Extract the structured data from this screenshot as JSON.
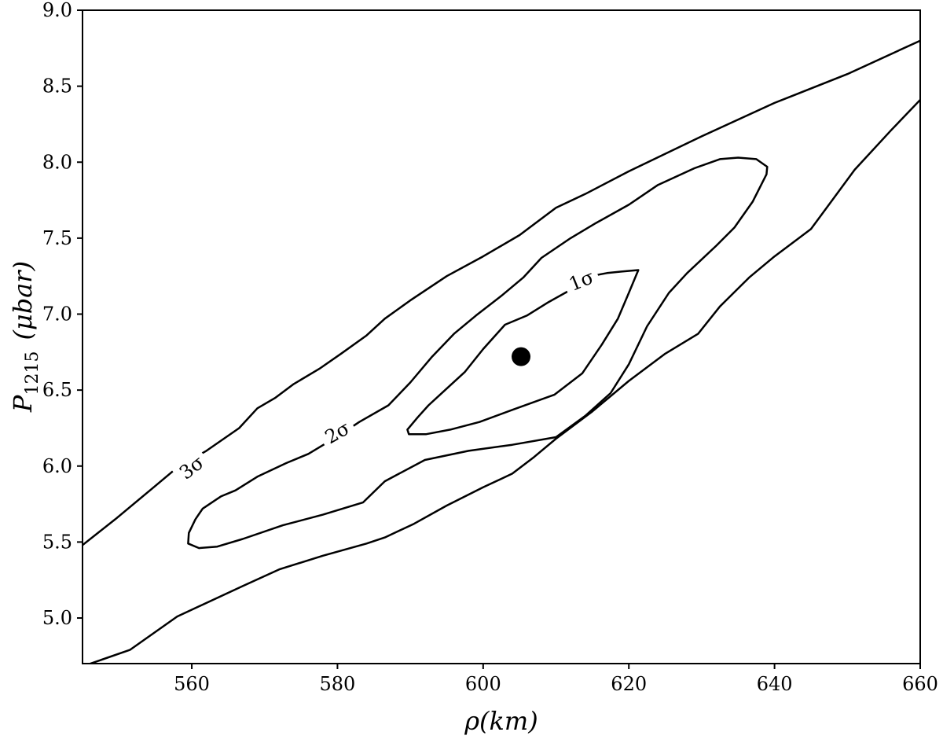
{
  "chart_data": {
    "type": "contour",
    "xlabel": "ρ(km)",
    "ylabel_main": "P",
    "ylabel_sub": "1215",
    "ylabel_unit": "(μbar)",
    "xlim": [
      545,
      660
    ],
    "ylim": [
      4.7,
      9.0
    ],
    "xticks": [
      560,
      580,
      600,
      620,
      640,
      660
    ],
    "xtick_labels": [
      "560",
      "580",
      "600",
      "620",
      "640",
      "660"
    ],
    "yticks": [
      5.0,
      5.5,
      6.0,
      6.5,
      7.0,
      7.5,
      8.0,
      8.5,
      9.0
    ],
    "ytick_labels": [
      "5.0",
      "5.5",
      "6.0",
      "6.5",
      "7.0",
      "7.5",
      "8.0",
      "8.5",
      "9.0"
    ],
    "grid": false,
    "best_fit": {
      "x": 605.2,
      "y": 6.72
    },
    "contours": [
      {
        "level": "1σ",
        "closed": true,
        "label": {
          "text": "1σ",
          "x": 613.5,
          "y": 7.22,
          "angle": -22
        },
        "points": [
          [
            621.3,
            7.29
          ],
          [
            620.0,
            7.14
          ],
          [
            618.5,
            6.97
          ],
          [
            616.3,
            6.8
          ],
          [
            613.6,
            6.61
          ],
          [
            609.8,
            6.47
          ],
          [
            604.0,
            6.37
          ],
          [
            599.5,
            6.29
          ],
          [
            595.5,
            6.24
          ],
          [
            592.2,
            6.21
          ],
          [
            589.8,
            6.21
          ],
          [
            589.6,
            6.24
          ],
          [
            591.0,
            6.32
          ],
          [
            592.5,
            6.4
          ],
          [
            595.0,
            6.51
          ],
          [
            597.5,
            6.62
          ],
          [
            600.0,
            6.77
          ],
          [
            601.5,
            6.85
          ],
          [
            603.0,
            6.93
          ],
          [
            606.0,
            6.99
          ],
          [
            609.0,
            7.08
          ],
          [
            612.0,
            7.16
          ],
          [
            614.8,
            7.25
          ],
          [
            617.0,
            7.27
          ],
          [
            619.0,
            7.28
          ],
          [
            621.3,
            7.29
          ]
        ]
      },
      {
        "level": "2σ",
        "closed": true,
        "label": {
          "text": "2σ",
          "x": 580.0,
          "y": 6.22,
          "angle": -30
        },
        "points": [
          [
            638.9,
            7.92
          ],
          [
            637.0,
            7.74
          ],
          [
            634.5,
            7.57
          ],
          [
            632.0,
            7.45
          ],
          [
            628.0,
            7.27
          ],
          [
            625.5,
            7.14
          ],
          [
            622.5,
            6.92
          ],
          [
            620.0,
            6.67
          ],
          [
            617.5,
            6.48
          ],
          [
            614.0,
            6.33
          ],
          [
            610.0,
            6.19
          ],
          [
            604.0,
            6.14
          ],
          [
            598.0,
            6.1
          ],
          [
            592.0,
            6.04
          ],
          [
            586.5,
            5.9
          ],
          [
            583.5,
            5.76
          ],
          [
            578.0,
            5.68
          ],
          [
            572.5,
            5.61
          ],
          [
            567.0,
            5.52
          ],
          [
            563.5,
            5.47
          ],
          [
            561.0,
            5.46
          ],
          [
            559.5,
            5.49
          ],
          [
            559.6,
            5.56
          ],
          [
            560.5,
            5.65
          ],
          [
            561.5,
            5.72
          ],
          [
            564.0,
            5.8
          ],
          [
            566.0,
            5.84
          ],
          [
            569.0,
            5.93
          ],
          [
            573.0,
            6.02
          ],
          [
            576.0,
            6.08
          ],
          [
            580.5,
            6.21
          ],
          [
            583.0,
            6.29
          ],
          [
            587.0,
            6.4
          ],
          [
            590.0,
            6.55
          ],
          [
            593.0,
            6.72
          ],
          [
            596.0,
            6.87
          ],
          [
            599.0,
            6.99
          ],
          [
            602.5,
            7.12
          ],
          [
            605.5,
            7.24
          ],
          [
            608.0,
            7.37
          ],
          [
            612.0,
            7.5
          ],
          [
            615.5,
            7.6
          ],
          [
            620.0,
            7.72
          ],
          [
            624.0,
            7.85
          ],
          [
            629.0,
            7.96
          ],
          [
            632.5,
            8.02
          ],
          [
            635.0,
            8.03
          ],
          [
            637.5,
            8.02
          ],
          [
            639.0,
            7.97
          ],
          [
            638.9,
            7.92
          ]
        ]
      },
      {
        "level": "3σ",
        "closed": false,
        "label": {
          "text": "3σ",
          "x": 560.0,
          "y": 5.99,
          "angle": -38
        },
        "points": [
          [
            545.0,
            5.48
          ],
          [
            549.5,
            5.65
          ],
          [
            554.5,
            5.85
          ],
          [
            558.0,
            5.99
          ],
          [
            562.0,
            6.1
          ],
          [
            566.5,
            6.25
          ],
          [
            569.0,
            6.38
          ],
          [
            571.5,
            6.45
          ],
          [
            574.0,
            6.54
          ],
          [
            577.5,
            6.64
          ],
          [
            580.5,
            6.74
          ],
          [
            584.0,
            6.86
          ],
          [
            586.5,
            6.97
          ],
          [
            590.0,
            7.09
          ],
          [
            595.0,
            7.25
          ],
          [
            600.0,
            7.38
          ],
          [
            605.0,
            7.52
          ],
          [
            610.0,
            7.7
          ],
          [
            614.0,
            7.79
          ],
          [
            620.0,
            7.94
          ],
          [
            630.0,
            8.17
          ],
          [
            640.0,
            8.39
          ],
          [
            650.0,
            8.58
          ],
          [
            660.0,
            8.8
          ]
        ],
        "points_lower": [
          [
            545.5,
            4.69
          ],
          [
            551.5,
            4.79
          ],
          [
            558.0,
            5.01
          ],
          [
            567.0,
            5.21
          ],
          [
            572.0,
            5.32
          ],
          [
            578.0,
            5.41
          ],
          [
            584.0,
            5.49
          ],
          [
            586.5,
            5.53
          ],
          [
            590.5,
            5.62
          ],
          [
            595.0,
            5.74
          ],
          [
            600.0,
            5.86
          ],
          [
            604.0,
            5.95
          ],
          [
            607.0,
            6.06
          ],
          [
            610.0,
            6.18
          ],
          [
            615.0,
            6.36
          ],
          [
            620.0,
            6.56
          ],
          [
            625.0,
            6.74
          ],
          [
            629.5,
            6.87
          ],
          [
            632.5,
            7.05
          ],
          [
            636.5,
            7.24
          ],
          [
            640.0,
            7.38
          ],
          [
            645.0,
            7.56
          ],
          [
            651.0,
            7.95
          ],
          [
            656.0,
            8.21
          ],
          [
            660.0,
            8.41
          ]
        ]
      }
    ]
  }
}
